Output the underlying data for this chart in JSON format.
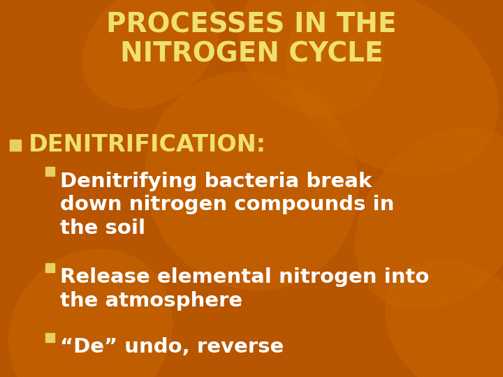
{
  "title_line1": "PROCESSES IN THE",
  "title_line2": "NITROGEN CYCLE",
  "title_color": "#F0E070",
  "bg_color": "#B85500",
  "leaf_color": "#C86800",
  "bullet1_label": "DENITRIFICATION:",
  "bullet1_color": "#F0E070",
  "sub_bullets": [
    "Denitrifying bacteria break\ndown nitrogen compounds in\nthe soil",
    "Release elemental nitrogen into\nthe atmosphere",
    "“De” undo, reverse"
  ],
  "sub_bullet_color": "#FFFFFF",
  "bullet_square_color": "#E8D060",
  "sub_bullet_square_color": "#E8D060",
  "title_fontsize": 28,
  "bullet1_fontsize": 24,
  "sub_fontsize": 21,
  "leaf_positions": [
    [
      0.78,
      0.78,
      0.38,
      0.52,
      30
    ],
    [
      0.88,
      0.42,
      0.32,
      0.5,
      -20
    ],
    [
      0.62,
      0.88,
      0.28,
      0.38,
      15
    ],
    [
      0.18,
      0.12,
      0.32,
      0.44,
      -10
    ],
    [
      0.92,
      0.12,
      0.28,
      0.4,
      25
    ],
    [
      0.5,
      0.52,
      0.42,
      0.58,
      5
    ],
    [
      0.3,
      0.88,
      0.25,
      0.35,
      -25
    ]
  ]
}
